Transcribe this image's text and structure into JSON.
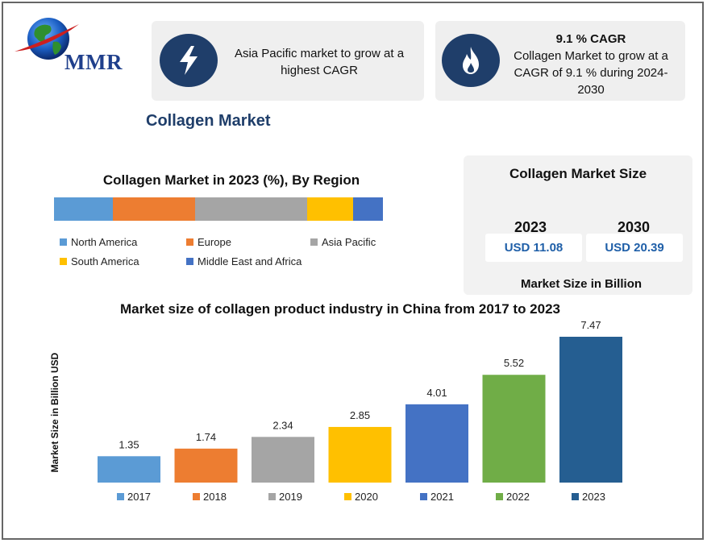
{
  "logo": {
    "text": "MMR"
  },
  "cards": [
    {
      "icon": "lightning-bolt-icon",
      "title": "",
      "text": "Asia Pacific market to grow at a highest CAGR"
    },
    {
      "icon": "flame-icon",
      "title": "9.1 % CAGR",
      "text": "Collagen Market to grow at a CAGR of 9.1 % during 2024-2030"
    }
  ],
  "main_title": "Collagen Market",
  "region_chart": {
    "title": "Collagen Market in 2023 (%), By Region",
    "legend": [
      {
        "name": "North America",
        "color": "#5b9bd5"
      },
      {
        "name": "Europe",
        "color": "#ed7d31"
      },
      {
        "name": "Asia Pacific",
        "color": "#a5a5a5"
      },
      {
        "name": "South America",
        "color": "#ffc000"
      },
      {
        "name": "Middle East and Africa",
        "color": "#4472c4"
      }
    ]
  },
  "market_size": {
    "title": "Collagen Market Size",
    "year_1": "2023",
    "value_1": "USD 11.08",
    "year_2": "2030",
    "value_2": "USD 20.39",
    "footer": "Market Size in Billion"
  },
  "chart_data": [
    {
      "type": "bar",
      "orientation": "horizontal-stacked",
      "title": "Collagen Market in 2023 (%), By Region",
      "categories": [
        "2023"
      ],
      "series": [
        {
          "name": "North America",
          "values": [
            18
          ]
        },
        {
          "name": "Europe",
          "values": [
            25
          ]
        },
        {
          "name": "Asia Pacific",
          "values": [
            34
          ]
        },
        {
          "name": "South America",
          "values": [
            14
          ]
        },
        {
          "name": "Middle East and Africa",
          "values": [
            9
          ]
        }
      ],
      "legend": "bottom"
    },
    {
      "type": "bar",
      "title": "Market size of collagen product industry in China from 2017 to 2023",
      "ylabel": "Market Size in Billion USD",
      "xlabel": "",
      "categories": [
        "2017",
        "2018",
        "2019",
        "2020",
        "2021",
        "2022",
        "2023"
      ],
      "values": [
        1.35,
        1.74,
        2.34,
        2.85,
        4.01,
        5.52,
        7.47
      ],
      "colors": [
        "#5b9bd5",
        "#ed7d31",
        "#a5a5a5",
        "#ffc000",
        "#4472c4",
        "#70ad47",
        "#255e91"
      ],
      "ylim": [
        0,
        7.47
      ],
      "grid": false,
      "legend": "bottom"
    }
  ]
}
